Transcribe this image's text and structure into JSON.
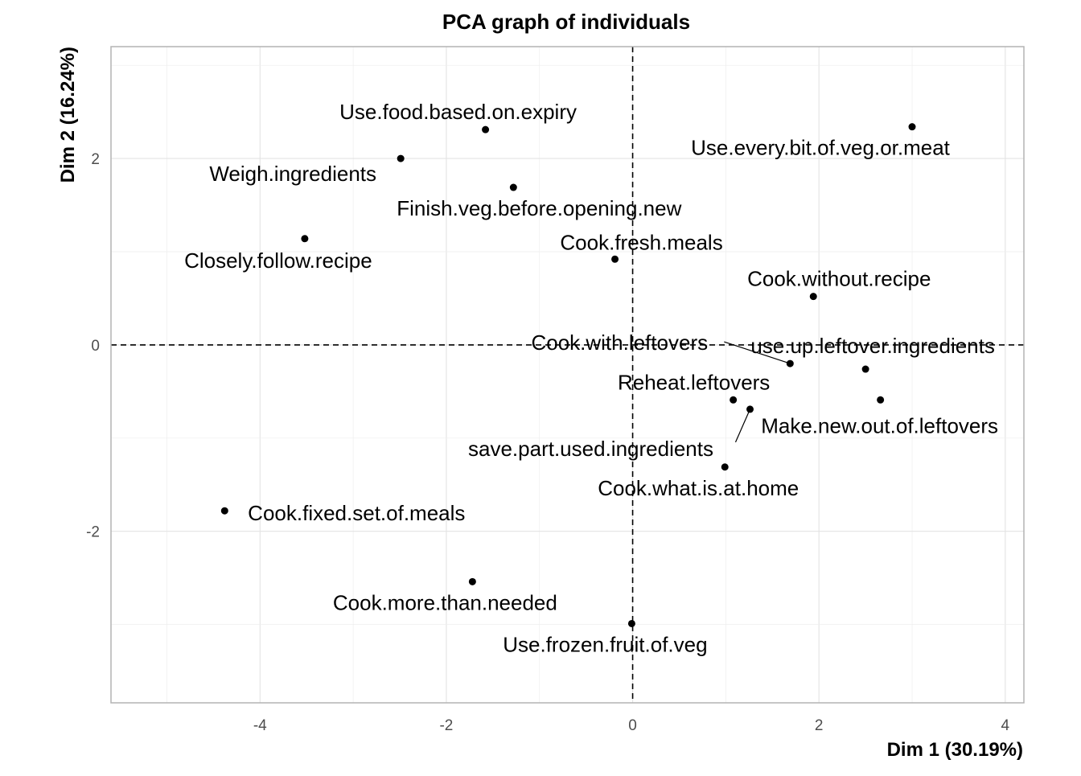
{
  "chart_data": {
    "type": "scatter",
    "title": "PCA graph of individuals",
    "xlabel": "Dim 1 (30.19%)",
    "ylabel": "Dim 2 (16.24%)",
    "xlim": [
      -5.6,
      4.2
    ],
    "ylim": [
      -3.84,
      3.2
    ],
    "xticks": [
      -4,
      -2,
      0,
      2,
      4
    ],
    "yticks": [
      -2,
      0,
      2
    ],
    "grid": true,
    "reference_lines": {
      "x": 0,
      "y": 0
    },
    "points": [
      {
        "name": "Use.food.based.on.expiry",
        "x": -1.58,
        "y": 2.31
      },
      {
        "name": "Use.every.bit.of.veg.or.meat",
        "x": 3.0,
        "y": 2.34
      },
      {
        "name": "Weigh.ingredients",
        "x": -2.49,
        "y": 2.0
      },
      {
        "name": "Finish.veg.before.opening.new",
        "x": -1.28,
        "y": 1.69
      },
      {
        "name": "Closely.follow.recipe",
        "x": -3.52,
        "y": 1.14
      },
      {
        "name": "Cook.fresh.meals",
        "x": -0.19,
        "y": 0.92
      },
      {
        "name": "Cook.without.recipe",
        "x": 1.94,
        "y": 0.52
      },
      {
        "name": "Cook.with.leftovers",
        "x": 1.69,
        "y": -0.2
      },
      {
        "name": "use.up.leftover.ingredients",
        "x": 2.5,
        "y": -0.26
      },
      {
        "name": "Reheat.leftovers",
        "x": 1.08,
        "y": -0.59
      },
      {
        "name": "Make.new.out.of.leftovers",
        "x": 2.66,
        "y": -0.59
      },
      {
        "name": "save.part.used.ingredients",
        "x": 1.26,
        "y": -0.69
      },
      {
        "name": "Cook.what.is.at.home",
        "x": 0.99,
        "y": -1.31
      },
      {
        "name": "Cook.fixed.set.of.meals",
        "x": -4.38,
        "y": -1.78
      },
      {
        "name": "Cook.more.than.needed",
        "x": -1.72,
        "y": -2.54
      },
      {
        "name": "Use.frozen.fruit.of.veg",
        "x": -0.01,
        "y": -2.99
      }
    ]
  }
}
